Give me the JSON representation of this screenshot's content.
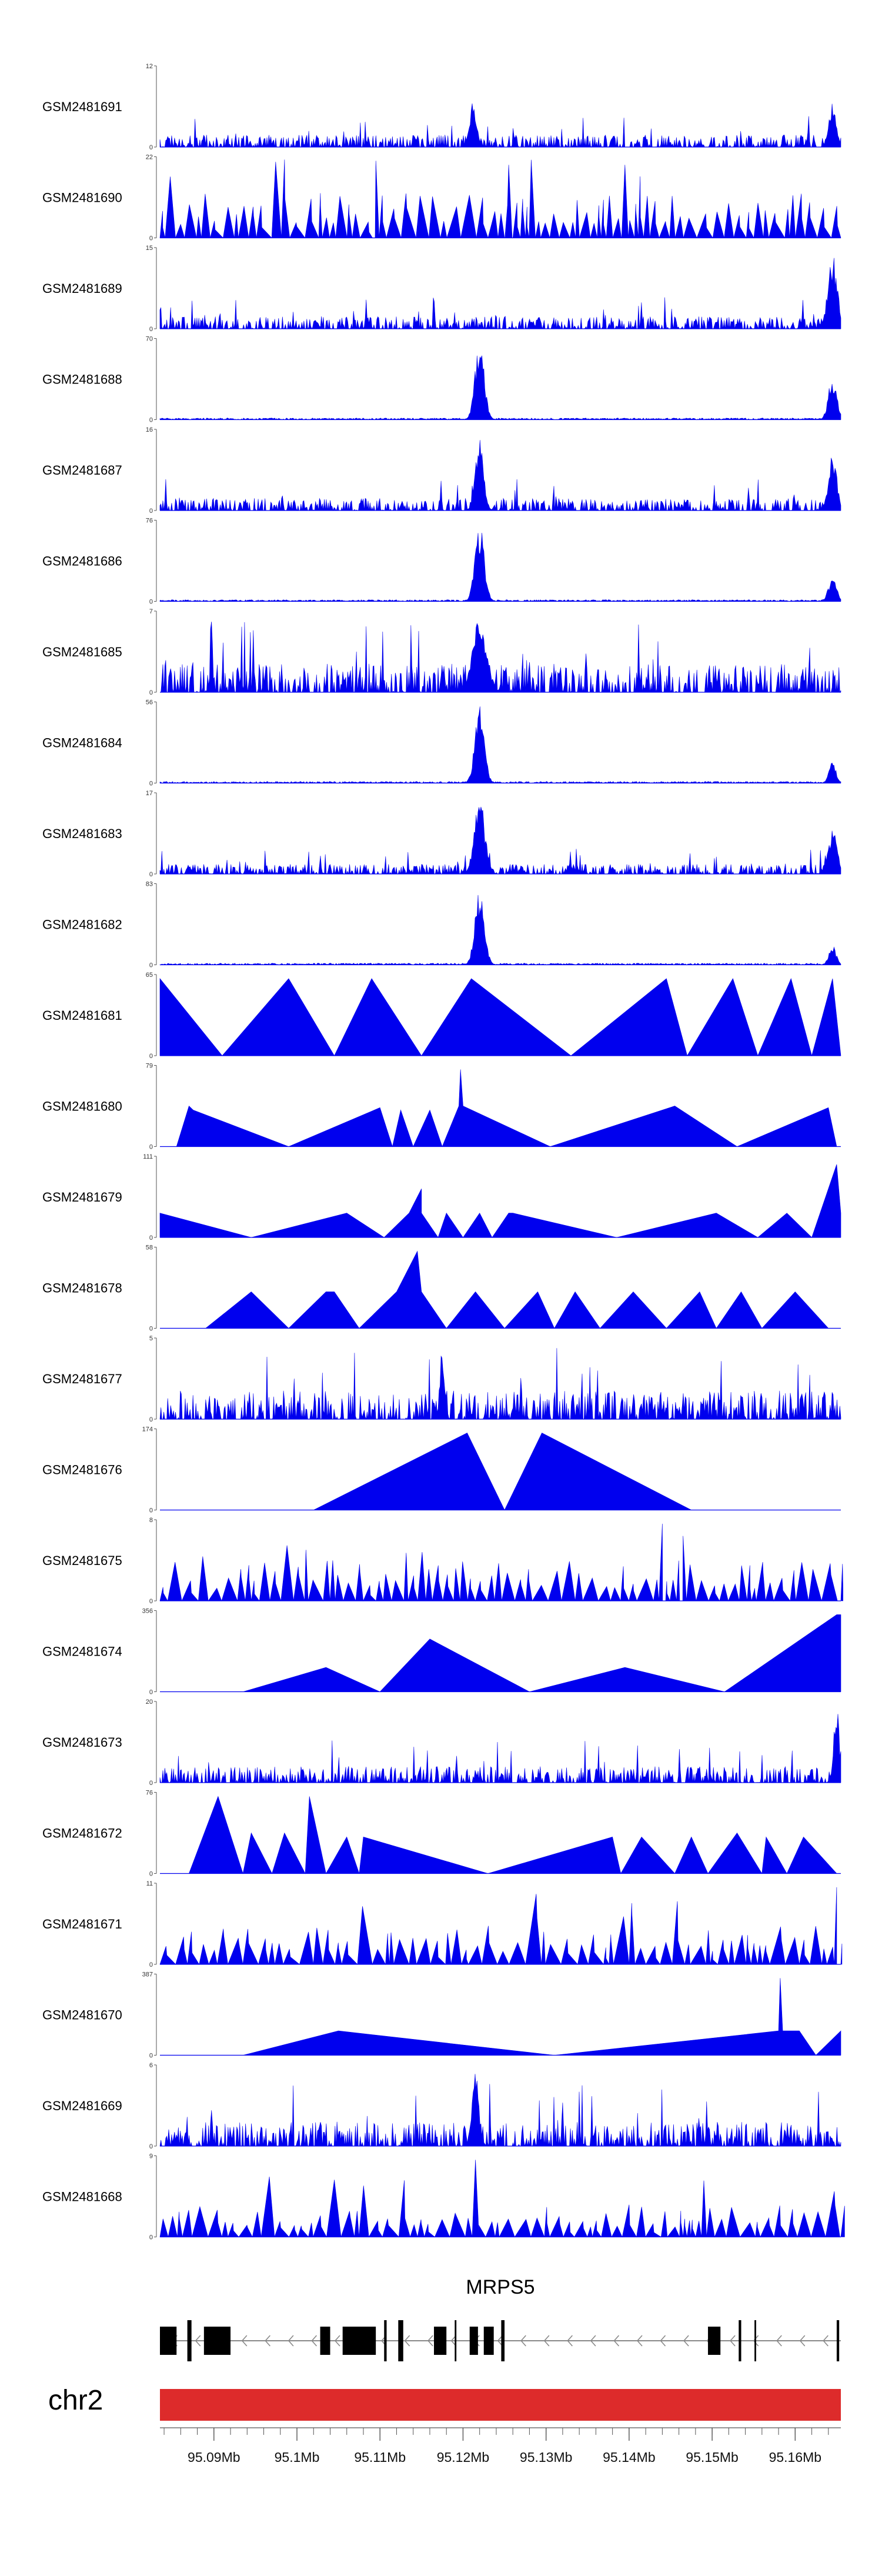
{
  "colors": {
    "coverage": "#0000ee",
    "chromosome": "#dd2b2b",
    "axis": "#555555",
    "gene": "#000000",
    "intron": "#888888"
  },
  "chart_data": {
    "type": "area",
    "title": "",
    "chromosome": "chr2",
    "xlim": [
      95.0835,
      95.1655
    ],
    "xunit": "Mb",
    "x_ticks": [
      {
        "value": 95.09,
        "label": "95.09Mb"
      },
      {
        "value": 95.1,
        "label": "95.1Mb"
      },
      {
        "value": 95.11,
        "label": "95.11Mb"
      },
      {
        "value": 95.12,
        "label": "95.12Mb"
      },
      {
        "value": 95.13,
        "label": "95.13Mb"
      },
      {
        "value": 95.14,
        "label": "95.14Mb"
      },
      {
        "value": 95.15,
        "label": "95.15Mb"
      },
      {
        "value": 95.16,
        "label": "95.16Mb"
      }
    ],
    "gene": {
      "name": "MRPS5",
      "strand": "-",
      "start": 95.0835,
      "end": 95.1655,
      "exons": [
        [
          95.0835,
          95.0855
        ],
        [
          95.0868,
          95.0873
        ],
        [
          95.0888,
          95.092
        ],
        [
          95.1028,
          95.104
        ],
        [
          95.1055,
          95.1095
        ],
        [
          95.1105,
          95.1108
        ],
        [
          95.1122,
          95.1128
        ],
        [
          95.1165,
          95.118
        ],
        [
          95.119,
          95.1192
        ],
        [
          95.1208,
          95.1218
        ],
        [
          95.1225,
          95.1237
        ],
        [
          95.1246,
          95.125
        ],
        [
          95.1495,
          95.151
        ],
        [
          95.1532,
          95.1535
        ],
        [
          95.1551,
          95.1553
        ],
        [
          95.165,
          95.1653
        ]
      ]
    },
    "series": [
      {
        "name": "GSM2481691",
        "ymax": 12,
        "pattern": "noise",
        "seed": 11,
        "base": 0.15,
        "peaks": [
          [
            95.1212,
            0.6,
            0.0006
          ],
          [
            95.1645,
            0.6,
            0.0006
          ]
        ]
      },
      {
        "name": "GSM2481690",
        "ymax": 22,
        "pattern": "sawtooth",
        "seed": 12,
        "base": 0.55,
        "peaks": [
          [
            95.1095,
            0.95,
            0.0004
          ],
          [
            95.1255,
            0.9,
            0.0005
          ],
          [
            95.1395,
            0.9,
            0.0004
          ]
        ]
      },
      {
        "name": "GSM2481689",
        "ymax": 15,
        "pattern": "noise",
        "seed": 13,
        "base": 0.15,
        "peaks": [
          [
            95.1645,
            0.95,
            0.0008
          ]
        ]
      },
      {
        "name": "GSM2481688",
        "ymax": 70,
        "pattern": "peaky",
        "seed": 14,
        "base": 0.02,
        "peaks": [
          [
            95.122,
            0.95,
            0.0008
          ],
          [
            95.1645,
            0.55,
            0.0007
          ]
        ]
      },
      {
        "name": "GSM2481687",
        "ymax": 16,
        "pattern": "noise",
        "seed": 15,
        "base": 0.15,
        "peaks": [
          [
            95.122,
            0.95,
            0.0007
          ],
          [
            95.1645,
            0.75,
            0.0007
          ]
        ]
      },
      {
        "name": "GSM2481686",
        "ymax": 76,
        "pattern": "peaky",
        "seed": 16,
        "base": 0.02,
        "peaks": [
          [
            95.122,
            0.95,
            0.0008
          ],
          [
            95.1645,
            0.3,
            0.0007
          ]
        ]
      },
      {
        "name": "GSM2481685",
        "ymax": 7,
        "pattern": "noise",
        "seed": 17,
        "base": 0.35,
        "peaks": [
          [
            95.122,
            0.95,
            0.0012
          ]
        ]
      },
      {
        "name": "GSM2481684",
        "ymax": 56,
        "pattern": "peaky",
        "seed": 18,
        "base": 0.02,
        "peaks": [
          [
            95.122,
            0.95,
            0.0008
          ],
          [
            95.1645,
            0.28,
            0.0006
          ]
        ]
      },
      {
        "name": "GSM2481683",
        "ymax": 17,
        "pattern": "noise",
        "seed": 19,
        "base": 0.12,
        "peaks": [
          [
            95.122,
            0.95,
            0.0009
          ],
          [
            95.1645,
            0.55,
            0.0008
          ]
        ]
      },
      {
        "name": "GSM2481682",
        "ymax": 83,
        "pattern": "peaky",
        "seed": 20,
        "base": 0.02,
        "peaks": [
          [
            95.122,
            0.95,
            0.0008
          ],
          [
            95.1645,
            0.25,
            0.0006
          ]
        ]
      },
      {
        "name": "GSM2481681",
        "ymax": 65,
        "pattern": "triangles",
        "start": 95.0835,
        "vals": [
          0.95,
          0,
          0.95,
          0,
          0.95,
          0,
          0.95,
          0,
          0.95,
          0,
          0.95,
          0,
          0.95,
          0,
          0.95,
          0
        ],
        "xs": [
          95.0835,
          95.091,
          95.099,
          95.1045,
          95.109,
          95.115,
          95.121,
          95.133,
          95.1445,
          95.147,
          95.1525,
          95.1555,
          95.1595,
          95.162,
          95.1645,
          95.1655
        ]
      },
      {
        "name": "GSM2481680",
        "ymax": 79,
        "pattern": "triangles",
        "vals": [
          0,
          0.5,
          0.45,
          0,
          0.48,
          0,
          0.45,
          0,
          0.45,
          0,
          0.5,
          0.95,
          0.5,
          0,
          0.5,
          0,
          0.48,
          0
        ],
        "xs": [
          95.0855,
          95.087,
          95.0875,
          95.099,
          95.11,
          95.1115,
          95.1125,
          95.114,
          95.116,
          95.1175,
          95.1195,
          95.1197,
          95.12,
          95.1305,
          95.1455,
          95.153,
          95.164,
          95.165
        ]
      },
      {
        "name": "GSM2481679",
        "ymax": 111,
        "pattern": "triangles",
        "vals": [
          0.3,
          0,
          0.3,
          0,
          0.3,
          0.6,
          0.3,
          0,
          0.3,
          0,
          0.3,
          0,
          0.3,
          0.3,
          0,
          0.3,
          0,
          0.3,
          0,
          0.9,
          0.3
        ],
        "xs": [
          95.0835,
          95.0945,
          95.106,
          95.1105,
          95.1135,
          95.115,
          95.115,
          95.117,
          95.118,
          95.12,
          95.122,
          95.1235,
          95.1255,
          95.126,
          95.1385,
          95.1505,
          95.1555,
          95.159,
          95.162,
          95.165,
          95.1655
        ]
      },
      {
        "name": "GSM2481678",
        "ymax": 58,
        "pattern": "triangles",
        "vals": [
          0,
          0.45,
          0,
          0.45,
          0.45,
          0,
          0.45,
          0.95,
          0.45,
          0,
          0.45,
          0,
          0.45,
          0,
          0.45,
          0,
          0.45,
          0,
          0.45,
          0,
          0.45,
          0,
          0.45,
          0
        ],
        "xs": [
          95.089,
          95.0945,
          95.099,
          95.1035,
          95.1045,
          95.1075,
          95.112,
          95.1145,
          95.115,
          95.118,
          95.1215,
          95.125,
          95.129,
          95.131,
          95.1335,
          95.1365,
          95.1405,
          95.1445,
          95.1485,
          95.1505,
          95.1535,
          95.156,
          95.16,
          95.164
        ]
      },
      {
        "name": "GSM2481677",
        "ymax": 5,
        "pattern": "noise",
        "seed": 21,
        "base": 0.35,
        "peaks": [
          [
            95.1175,
            0.95,
            0.0004
          ]
        ]
      },
      {
        "name": "GSM2481676",
        "ymax": 174,
        "pattern": "triangles",
        "vals": [
          0,
          0.95,
          0,
          0.95,
          0
        ],
        "xs": [
          95.102,
          95.1205,
          95.125,
          95.1295,
          95.1475
        ]
      },
      {
        "name": "GSM2481675",
        "ymax": 8,
        "pattern": "sawtooth",
        "seed": 22,
        "base": 0.5,
        "peaks": [
          [
            95.144,
            0.95,
            0.0004
          ],
          [
            95.1465,
            0.8,
            0.0004
          ]
        ]
      },
      {
        "name": "GSM2481674",
        "ymax": 356,
        "pattern": "triangles",
        "vals": [
          0,
          0.3,
          0,
          0.65,
          0,
          0.3,
          0,
          0.95,
          0.95
        ],
        "xs": [
          95.0935,
          95.1035,
          95.11,
          95.116,
          95.128,
          95.1395,
          95.1515,
          95.165,
          95.1655
        ]
      },
      {
        "name": "GSM2481673",
        "ymax": 20,
        "pattern": "noise",
        "seed": 23,
        "base": 0.2,
        "peaks": [
          [
            95.165,
            0.95,
            0.0005
          ]
        ]
      },
      {
        "name": "GSM2481672",
        "ymax": 76,
        "pattern": "triangles",
        "vals": [
          0,
          0.95,
          0,
          0.5,
          0,
          0.5,
          0,
          0.95,
          0,
          0.45,
          0,
          0.45,
          0,
          0.45,
          0,
          0.45,
          0,
          0.45,
          0,
          0.5,
          0,
          0.45,
          0,
          0.45,
          0
        ],
        "xs": [
          95.087,
          95.0905,
          95.0935,
          95.0945,
          95.097,
          95.0985,
          95.101,
          95.1015,
          95.1035,
          95.106,
          95.1075,
          95.108,
          95.123,
          95.138,
          95.139,
          95.1415,
          95.1455,
          95.1475,
          95.1495,
          95.153,
          95.156,
          95.1565,
          95.159,
          95.161,
          95.165
        ]
      },
      {
        "name": "GSM2481671",
        "ymax": 11,
        "pattern": "sawtooth",
        "seed": 24,
        "base": 0.5,
        "peaks": [
          [
            95.165,
            0.95,
            0.0003
          ]
        ]
      },
      {
        "name": "GSM2481670",
        "ymax": 387,
        "pattern": "triangles",
        "vals": [
          0,
          0.3,
          0,
          0.3,
          0.95,
          0.3,
          0.3,
          0,
          0.3
        ],
        "xs": [
          95.0935,
          95.105,
          95.131,
          95.158,
          95.1582,
          95.1585,
          95.1605,
          95.1625,
          95.1655
        ]
      },
      {
        "name": "GSM2481669",
        "ymax": 6,
        "pattern": "noise",
        "seed": 25,
        "base": 0.3,
        "peaks": [
          [
            95.1215,
            0.95,
            0.0006
          ]
        ]
      },
      {
        "name": "GSM2481668",
        "ymax": 9,
        "pattern": "sawtooth",
        "seed": 26,
        "base": 0.4,
        "peaks": [
          [
            95.1215,
            0.95,
            0.0004
          ]
        ]
      }
    ]
  }
}
